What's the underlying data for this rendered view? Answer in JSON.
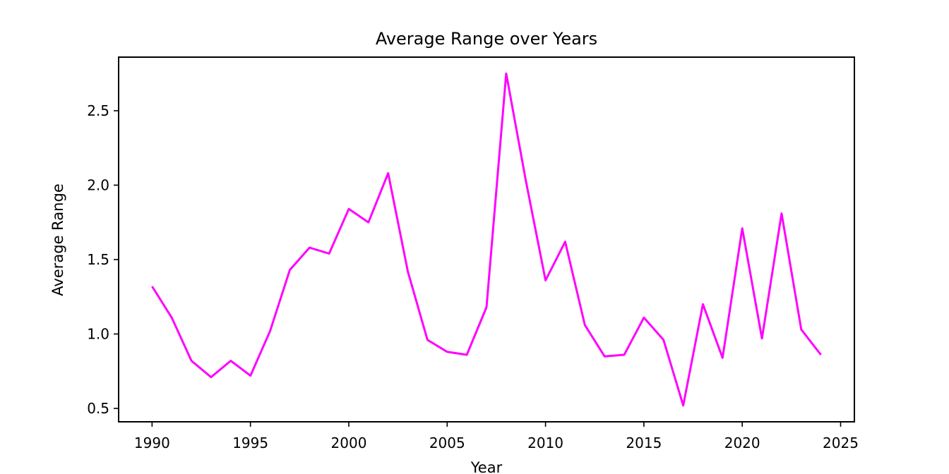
{
  "chart_data": {
    "type": "line",
    "title": "Average Range over Years",
    "xlabel": "Year",
    "ylabel": "Average Range",
    "xlim": [
      1988.3,
      2025.7
    ],
    "ylim": [
      0.41,
      2.86
    ],
    "xticks": [
      1990,
      1995,
      2000,
      2005,
      2010,
      2015,
      2020,
      2025
    ],
    "yticks": [
      0.5,
      1.0,
      1.5,
      2.0,
      2.5
    ],
    "grid": false,
    "line_color": "#ff00ff",
    "series": [
      {
        "x": [
          1990,
          1991,
          1992,
          1993,
          1994,
          1995,
          1996,
          1997,
          1998,
          1999,
          2000,
          2001,
          2002,
          2003,
          2004,
          2005,
          2006,
          2007,
          2008,
          2009,
          2010,
          2011,
          2012,
          2013,
          2014,
          2015,
          2016,
          2017,
          2018,
          2019,
          2020,
          2021,
          2022,
          2023,
          2024
        ],
        "values": [
          1.32,
          1.11,
          0.82,
          0.71,
          0.82,
          0.72,
          1.02,
          1.43,
          1.58,
          1.54,
          1.84,
          1.75,
          2.08,
          1.42,
          0.96,
          0.88,
          0.86,
          1.18,
          2.75,
          2.03,
          1.36,
          1.62,
          1.06,
          0.85,
          0.86,
          1.11,
          0.96,
          0.52,
          1.2,
          0.84,
          1.71,
          0.97,
          1.81,
          1.03,
          0.86
        ]
      }
    ]
  }
}
